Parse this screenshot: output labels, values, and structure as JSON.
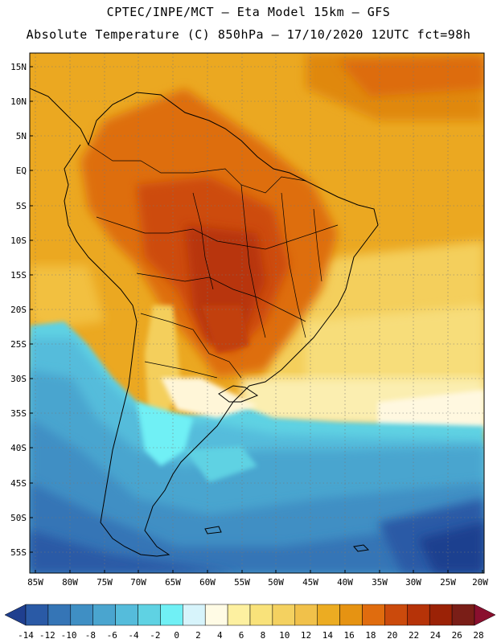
{
  "header": {
    "line1": "CPTEC/INPE/MCT –  Eta Model 15km – GFS",
    "line2": "Absolute Temperature (C) 850hPa – 17/10/2020 12UTC fct=98h"
  },
  "axes": {
    "lat_labels": [
      "15N",
      "10N",
      "5N",
      "EQ",
      "5S",
      "10S",
      "15S",
      "20S",
      "25S",
      "30S",
      "35S",
      "40S",
      "45S",
      "50S",
      "55S"
    ],
    "lon_labels": [
      "85W",
      "80W",
      "75W",
      "70W",
      "65W",
      "60W",
      "55W",
      "50W",
      "45W",
      "40W",
      "35W",
      "30W",
      "25W",
      "20W"
    ]
  },
  "legend": {
    "colors": [
      "#1f3f8f",
      "#2a5aa6",
      "#3575b6",
      "#3f8fc4",
      "#4aa5cf",
      "#55bcdb",
      "#5fd2e3",
      "#70f0f5",
      "#d7f4fb",
      "#fffbe5",
      "#fdf0a0",
      "#f9e27a",
      "#f4d160",
      "#f1c14a",
      "#ecac22",
      "#e69312",
      "#e06c0e",
      "#cb4a0c",
      "#b63308",
      "#9b2206",
      "#7a1e17",
      "#8a0f2e"
    ],
    "labels": [
      "-14",
      "-12",
      "-10",
      "-8",
      "-6",
      "-4",
      "-2",
      "0",
      "2",
      "4",
      "6",
      "8",
      "10",
      "12",
      "14",
      "16",
      "18",
      "20",
      "22",
      "24",
      "26",
      "28"
    ]
  }
}
